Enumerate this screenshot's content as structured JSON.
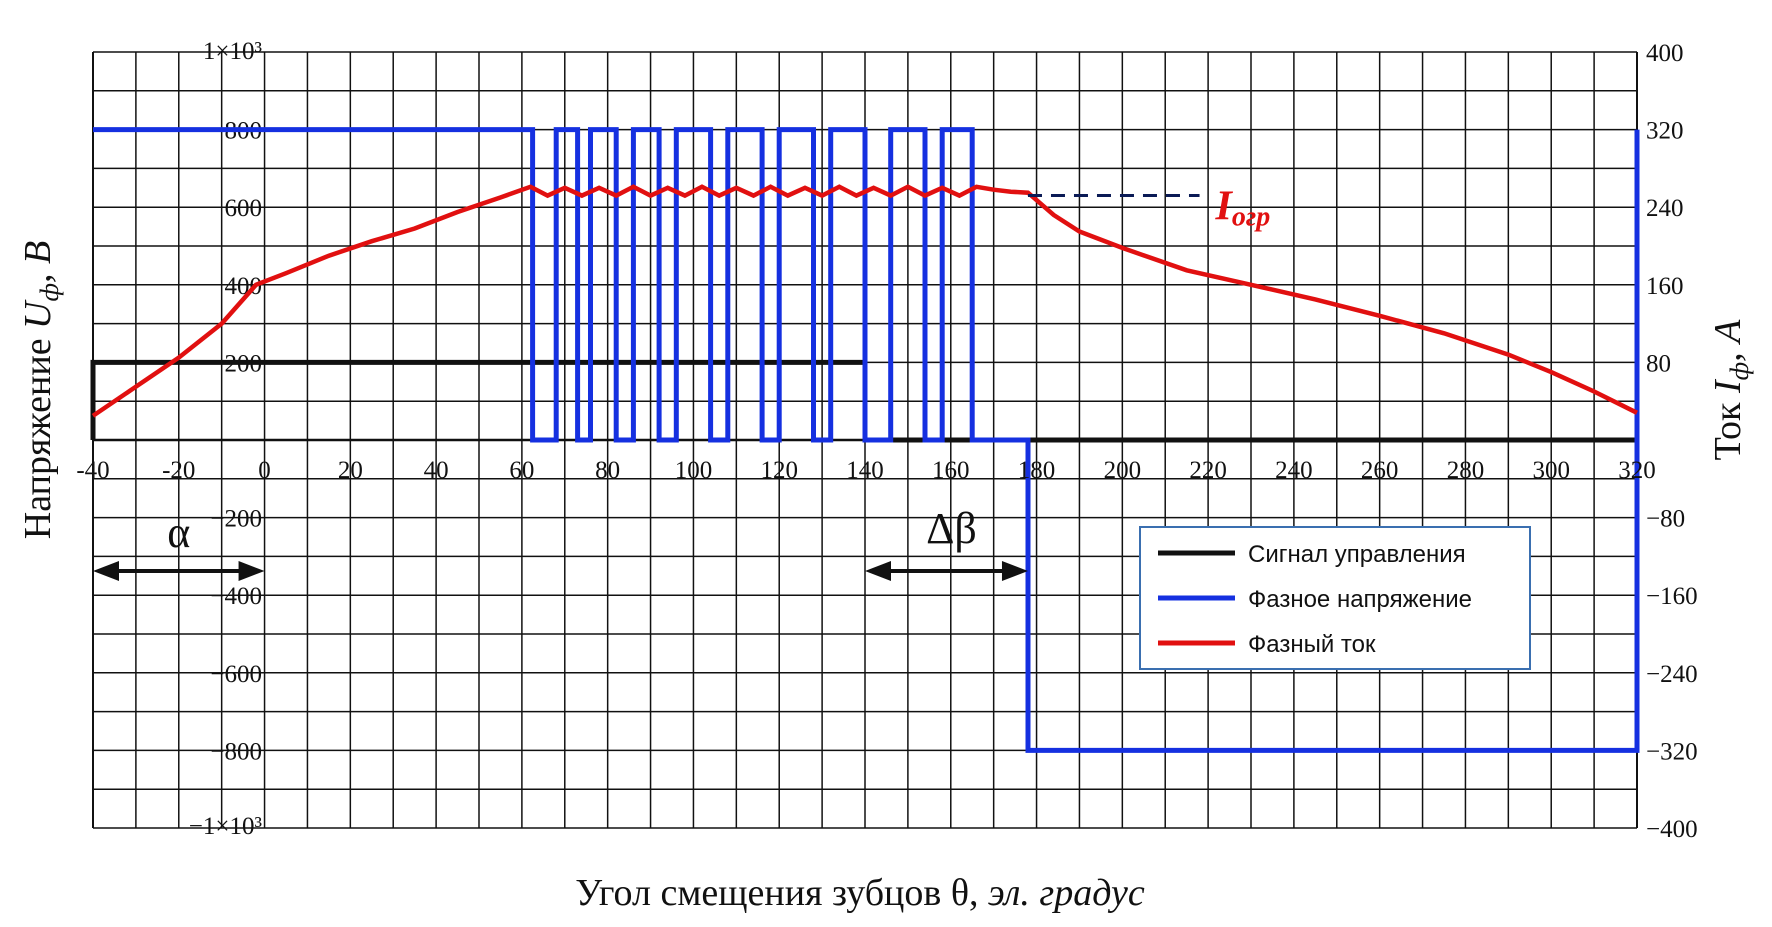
{
  "chart_data": {
    "type": "line",
    "title": "",
    "xlabel": "Угол смещения зубцов θ, эл. градус",
    "xlabel_parts": {
      "main": "Угол смещения зубцов θ, ",
      "units": "эл. градус"
    },
    "ylabel_left": "Напряжение Uф, В",
    "ylabel_left_parts": {
      "main": "Напряжение ",
      "sym": "U",
      "sub": "ф",
      "units": ", В"
    },
    "ylabel_right": "Ток Iф, А",
    "ylabel_right_parts": {
      "main": "Ток ",
      "sym": "I",
      "sub": "ф",
      "units": ", А"
    },
    "xlim": [
      -40,
      320
    ],
    "ylim_left": [
      -1000,
      1000
    ],
    "ylim_right": [
      -400,
      400
    ],
    "grid": true,
    "legend_position": "lower-right",
    "x_ticks": [
      -40,
      -20,
      0,
      20,
      40,
      60,
      80,
      100,
      120,
      140,
      160,
      180,
      200,
      220,
      240,
      260,
      280,
      300,
      320
    ],
    "x_tick_labels": [
      "-40",
      "-20",
      "0",
      "20",
      "40",
      "60",
      "80",
      "100",
      "120",
      "140",
      "160",
      "180",
      "200",
      "220",
      "240",
      "260",
      "280",
      "300",
      "320"
    ],
    "y_left_ticks": [
      1000,
      800,
      600,
      400,
      200,
      -200,
      -400,
      -600,
      -800,
      -1000
    ],
    "y_left_tick_labels": [
      "1×10³",
      "800",
      "600",
      "400",
      "200",
      "−200",
      "−400",
      "−600",
      "−800",
      "−1×10³"
    ],
    "y_right_ticks": [
      400,
      320,
      240,
      160,
      80,
      0,
      -80,
      -160,
      -240,
      -320,
      -400
    ],
    "y_right_tick_labels": [
      "400",
      "320",
      "240",
      "160",
      "80",
      "0",
      "−80",
      "−160",
      "−240",
      "−320",
      "−400"
    ],
    "series": [
      {
        "name": "Сигнал управления",
        "color": "#111111",
        "axis": "left",
        "x": [
          -40,
          -40,
          140,
          140,
          180,
          180,
          320
        ],
        "y": [
          0,
          200,
          200,
          0,
          0,
          0,
          0
        ]
      },
      {
        "name": "Фазное напряжение",
        "color": "#1530e0",
        "axis": "left",
        "x": [
          -40,
          62.5,
          62.5,
          68,
          68,
          73,
          73,
          76,
          76,
          82,
          82,
          86,
          86,
          92,
          92,
          96,
          96,
          104,
          104,
          108,
          108,
          116,
          116,
          120,
          120,
          128,
          128,
          132,
          132,
          140,
          140,
          146,
          146,
          154,
          154,
          158,
          158,
          165,
          165,
          178,
          178,
          320,
          320
        ],
        "y": [
          800,
          800,
          0,
          0,
          800,
          800,
          0,
          0,
          800,
          800,
          0,
          0,
          800,
          800,
          0,
          0,
          800,
          800,
          0,
          0,
          800,
          800,
          0,
          0,
          800,
          800,
          0,
          0,
          800,
          800,
          0,
          0,
          800,
          800,
          0,
          0,
          800,
          800,
          0,
          0,
          -800,
          -800,
          800
        ]
      },
      {
        "name": "Фазный ток",
        "color": "#e11010",
        "axis": "right",
        "x": [
          -40,
          -30,
          -20,
          -10,
          -2,
          5,
          15,
          25,
          35,
          45,
          55,
          62,
          66,
          70,
          74,
          78,
          82,
          86,
          90,
          94,
          98,
          102,
          106,
          110,
          114,
          118,
          122,
          126,
          130,
          134,
          138,
          142,
          146,
          150,
          154,
          158,
          162,
          166,
          170,
          174,
          178,
          184,
          190,
          200,
          215,
          230,
          245,
          260,
          275,
          290,
          300,
          310,
          320
        ],
        "y": [
          25,
          55,
          85,
          120,
          160,
          172,
          190,
          205,
          218,
          235,
          250,
          261,
          252,
          260,
          252,
          260,
          252,
          261,
          252,
          260,
          252,
          261,
          252,
          260,
          252,
          261,
          252,
          260,
          252,
          261,
          252,
          260,
          252,
          261,
          252,
          260,
          252,
          261,
          258,
          256,
          255,
          232,
          215,
          198,
          175,
          160,
          145,
          128,
          110,
          88,
          70,
          50,
          28
        ]
      }
    ],
    "annotations": [
      {
        "text": "α",
        "x_from": -40,
        "x_to": 0
      },
      {
        "text": "Δβ",
        "x_from": 140,
        "x_to": 178
      },
      {
        "text": "Iогр",
        "sym": "I",
        "sub": "огр",
        "line_y_right": 252,
        "x_from": 178,
        "x_to": 218
      }
    ]
  }
}
